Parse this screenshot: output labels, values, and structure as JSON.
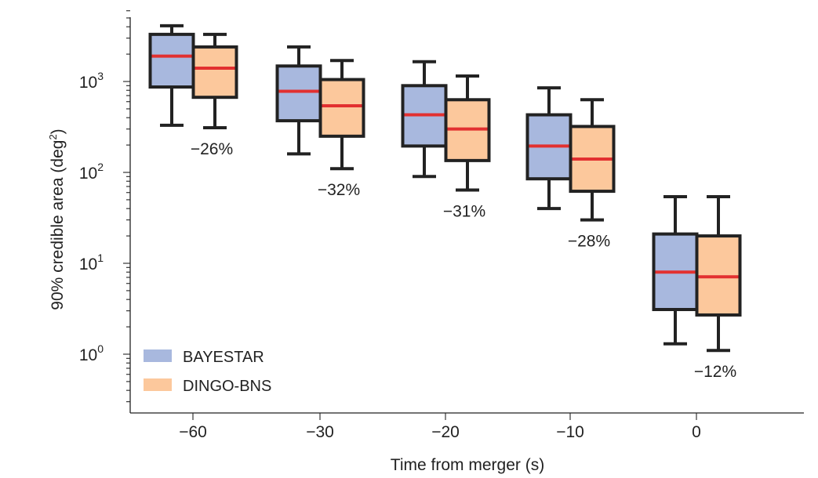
{
  "chart_data": {
    "type": "box",
    "xlabel": "Time from merger (s)",
    "ylabel_main": "90% credible area (deg",
    "ylabel_sup": "2",
    "ylabel_close": ")",
    "yscale": "log",
    "ylim": [
      0.3,
      6000
    ],
    "y_ticks": [
      {
        "value": 1,
        "base": "10",
        "exp": "0"
      },
      {
        "value": 10,
        "base": "10",
        "exp": "1"
      },
      {
        "value": 100,
        "base": "10",
        "exp": "2"
      },
      {
        "value": 1000,
        "base": "10",
        "exp": "3"
      }
    ],
    "categories": [
      "−60",
      "−30",
      "−20",
      "−10",
      "0"
    ],
    "series": [
      {
        "name": "BAYESTAR",
        "color": "#a8b8de",
        "boxes": [
          {
            "whislo": 330,
            "q1": 870,
            "med": 1900,
            "q3": 3300,
            "whishi": 4100
          },
          {
            "whislo": 160,
            "q1": 370,
            "med": 780,
            "q3": 1480,
            "whishi": 2400
          },
          {
            "whislo": 90,
            "q1": 195,
            "med": 430,
            "q3": 900,
            "whishi": 1650
          },
          {
            "whislo": 40,
            "q1": 85,
            "med": 195,
            "q3": 430,
            "whishi": 850
          },
          {
            "whislo": 1.3,
            "q1": 3.1,
            "med": 8.0,
            "q3": 21,
            "whishi": 54
          }
        ]
      },
      {
        "name": "DINGO-BNS",
        "color": "#fcc89c",
        "boxes": [
          {
            "whislo": 310,
            "q1": 670,
            "med": 1400,
            "q3": 2400,
            "whishi": 3300
          },
          {
            "whislo": 110,
            "q1": 250,
            "med": 540,
            "q3": 1050,
            "whishi": 1700
          },
          {
            "whislo": 64,
            "q1": 135,
            "med": 300,
            "q3": 630,
            "whishi": 1150
          },
          {
            "whislo": 30,
            "q1": 62,
            "med": 140,
            "q3": 320,
            "whishi": 630
          },
          {
            "whislo": 1.1,
            "q1": 2.7,
            "med": 7.1,
            "q3": 20,
            "whishi": 54
          }
        ]
      }
    ],
    "median_color": "#e23030",
    "annotations": [
      "−26%",
      "−32%",
      "−31%",
      "−28%",
      "−12%"
    ],
    "legend_position": "bottom-left",
    "grid": false
  }
}
